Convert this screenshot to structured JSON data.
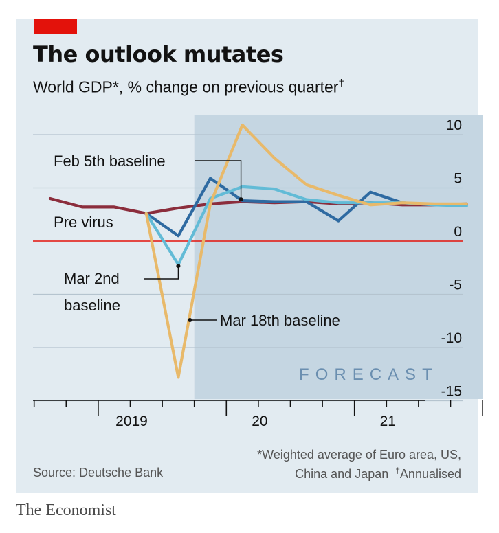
{
  "header": {
    "title": "The outlook mutates",
    "subtitle": "World GDP*, % change on previous quarter",
    "subtitle_mark": "†",
    "accent_color": "#e3120b"
  },
  "chart_data": {
    "type": "line",
    "title": "The outlook mutates",
    "subtitle": "World GDP*, % change on previous quarter†",
    "xlabel": "",
    "ylabel": "",
    "ylim": [
      -15,
      10
    ],
    "y_ticks": [
      10,
      5,
      0,
      -5,
      -10,
      -15
    ],
    "x_ticks": [
      "2019",
      "20",
      "21"
    ],
    "forecast_label": "FORECAST",
    "forecast_range": [
      "2019 Q4",
      "2021 Q4"
    ],
    "grid": true,
    "x": [
      "2018 Q3",
      "2018 Q4",
      "2019 Q1",
      "2019 Q2",
      "2019 Q3",
      "2019 Q4",
      "2020 Q1",
      "2020 Q2",
      "2020 Q3",
      "2020 Q4",
      "2021 Q1",
      "2021 Q2",
      "2021 Q3",
      "2021 Q4"
    ],
    "series": [
      {
        "name": "Pre virus",
        "color": "#8b2d3c",
        "values": [
          4.0,
          3.2,
          3.2,
          2.6,
          3.1,
          3.5,
          3.7,
          3.6,
          3.7,
          3.5,
          3.6,
          3.4,
          3.4,
          3.5
        ]
      },
      {
        "name": "Feb 5th baseline",
        "color": "#2e6aa1",
        "values": [
          null,
          null,
          null,
          2.6,
          0.5,
          5.9,
          3.8,
          3.7,
          3.7,
          1.9,
          4.6,
          3.6,
          3.4,
          3.4
        ]
      },
      {
        "name": "Mar 2nd baseline",
        "color": "#62bbd6",
        "values": [
          null,
          null,
          null,
          2.6,
          -2.2,
          4.0,
          5.1,
          4.9,
          3.9,
          3.6,
          3.6,
          3.6,
          3.4,
          3.3
        ]
      },
      {
        "name": "Mar 18th baseline",
        "color": "#e8b96a",
        "values": [
          null,
          null,
          null,
          2.6,
          -12.8,
          3.5,
          10.9,
          7.8,
          5.3,
          4.3,
          3.4,
          3.6,
          3.5,
          3.5
        ]
      }
    ],
    "annotations": [
      "Feb 5th baseline",
      "Pre virus",
      "Mar 2nd",
      "baseline",
      "Mar 18th baseline"
    ]
  },
  "footer": {
    "note_1": "*Weighted average of Euro area, US,",
    "note_2": "China and Japan  ",
    "note_2_mark": "†",
    "note_2_tail": "Annualised",
    "source": "Source: Deutsche Bank",
    "brand": "The Economist"
  }
}
